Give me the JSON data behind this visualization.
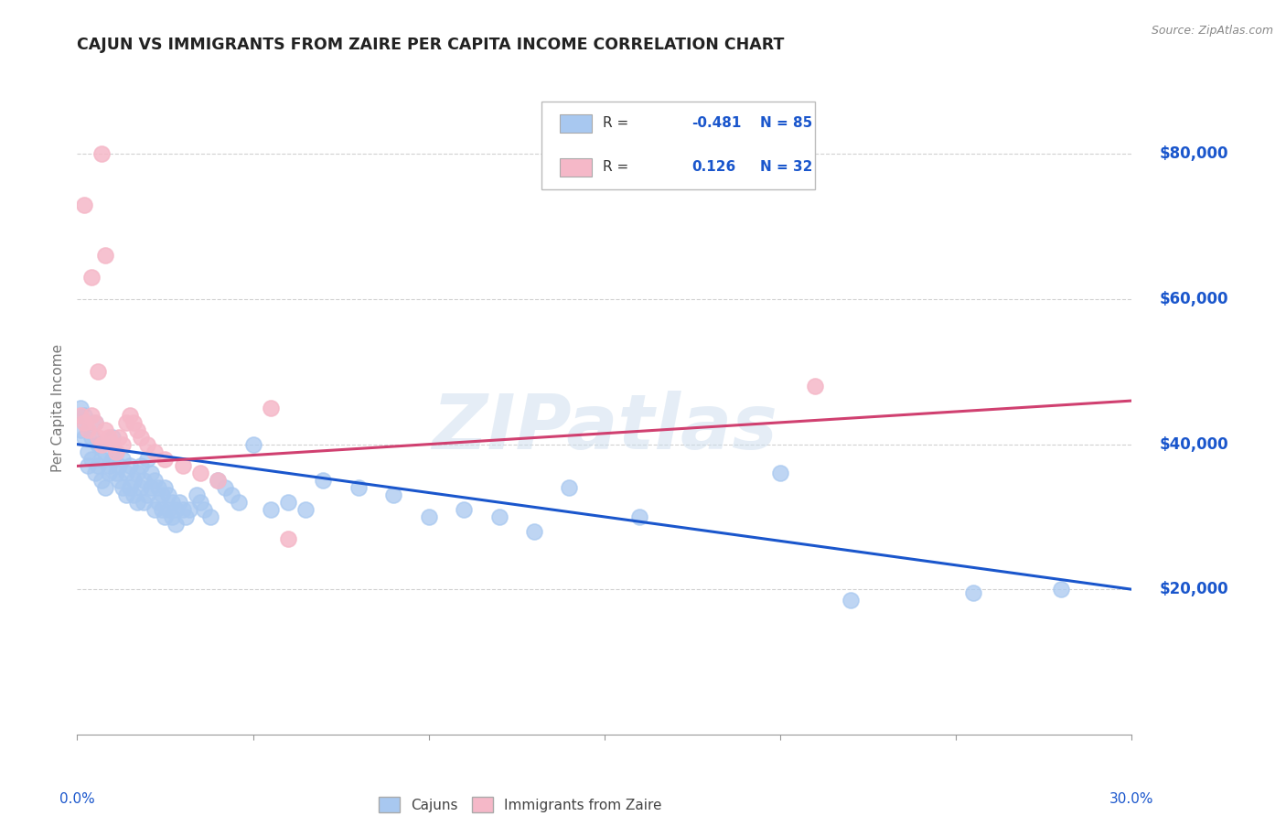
{
  "title": "CAJUN VS IMMIGRANTS FROM ZAIRE PER CAPITA INCOME CORRELATION CHART",
  "source": "Source: ZipAtlas.com",
  "ylabel": "Per Capita Income",
  "watermark": "ZIPatlas",
  "legend_blue_r": "-0.481",
  "legend_blue_n": "85",
  "legend_pink_r": "0.126",
  "legend_pink_n": "32",
  "ytick_values": [
    20000,
    40000,
    60000,
    80000
  ],
  "ylim": [
    0,
    90000
  ],
  "xlim": [
    0.0,
    0.3
  ],
  "blue_color": "#a8c8f0",
  "pink_color": "#f5b8c8",
  "blue_line_color": "#1a56cc",
  "pink_line_color": "#d04070",
  "text_color": "#1a56cc",
  "background_color": "#ffffff",
  "grid_color": "#cccccc",
  "cajun_points": [
    [
      0.001,
      45000
    ],
    [
      0.001,
      42000
    ],
    [
      0.002,
      44000
    ],
    [
      0.002,
      41000
    ],
    [
      0.003,
      39000
    ],
    [
      0.003,
      37000
    ],
    [
      0.004,
      41000
    ],
    [
      0.004,
      38000
    ],
    [
      0.005,
      43000
    ],
    [
      0.005,
      36000
    ],
    [
      0.006,
      40000
    ],
    [
      0.006,
      37000
    ],
    [
      0.007,
      38000
    ],
    [
      0.007,
      35000
    ],
    [
      0.008,
      39000
    ],
    [
      0.008,
      34000
    ],
    [
      0.009,
      37000
    ],
    [
      0.009,
      36000
    ],
    [
      0.01,
      41000
    ],
    [
      0.01,
      38000
    ],
    [
      0.011,
      39000
    ],
    [
      0.011,
      36000
    ],
    [
      0.012,
      37000
    ],
    [
      0.012,
      35000
    ],
    [
      0.013,
      38000
    ],
    [
      0.013,
      34000
    ],
    [
      0.014,
      36000
    ],
    [
      0.014,
      33000
    ],
    [
      0.015,
      37000
    ],
    [
      0.015,
      34000
    ],
    [
      0.016,
      35000
    ],
    [
      0.016,
      33000
    ],
    [
      0.017,
      36000
    ],
    [
      0.017,
      32000
    ],
    [
      0.018,
      37000
    ],
    [
      0.018,
      34000
    ],
    [
      0.019,
      35000
    ],
    [
      0.019,
      32000
    ],
    [
      0.02,
      38000
    ],
    [
      0.02,
      33000
    ],
    [
      0.021,
      36000
    ],
    [
      0.021,
      34000
    ],
    [
      0.022,
      35000
    ],
    [
      0.022,
      31000
    ],
    [
      0.023,
      34000
    ],
    [
      0.023,
      32000
    ],
    [
      0.024,
      33000
    ],
    [
      0.024,
      31000
    ],
    [
      0.025,
      34000
    ],
    [
      0.025,
      30000
    ],
    [
      0.026,
      33000
    ],
    [
      0.026,
      31000
    ],
    [
      0.027,
      32000
    ],
    [
      0.027,
      30000
    ],
    [
      0.028,
      31000
    ],
    [
      0.028,
      29000
    ],
    [
      0.029,
      32000
    ],
    [
      0.03,
      31000
    ],
    [
      0.031,
      30000
    ],
    [
      0.032,
      31000
    ],
    [
      0.034,
      33000
    ],
    [
      0.035,
      32000
    ],
    [
      0.036,
      31000
    ],
    [
      0.038,
      30000
    ],
    [
      0.04,
      35000
    ],
    [
      0.042,
      34000
    ],
    [
      0.044,
      33000
    ],
    [
      0.046,
      32000
    ],
    [
      0.05,
      40000
    ],
    [
      0.055,
      31000
    ],
    [
      0.06,
      32000
    ],
    [
      0.065,
      31000
    ],
    [
      0.07,
      35000
    ],
    [
      0.08,
      34000
    ],
    [
      0.09,
      33000
    ],
    [
      0.1,
      30000
    ],
    [
      0.11,
      31000
    ],
    [
      0.12,
      30000
    ],
    [
      0.13,
      28000
    ],
    [
      0.14,
      34000
    ],
    [
      0.16,
      30000
    ],
    [
      0.2,
      36000
    ],
    [
      0.22,
      18500
    ],
    [
      0.255,
      19500
    ],
    [
      0.28,
      20000
    ]
  ],
  "zaire_points": [
    [
      0.001,
      44000
    ],
    [
      0.002,
      43000
    ],
    [
      0.003,
      42000
    ],
    [
      0.004,
      44000
    ],
    [
      0.005,
      43000
    ],
    [
      0.006,
      41000
    ],
    [
      0.007,
      40000
    ],
    [
      0.008,
      42000
    ],
    [
      0.009,
      41000
    ],
    [
      0.01,
      40000
    ],
    [
      0.011,
      39000
    ],
    [
      0.012,
      41000
    ],
    [
      0.013,
      40000
    ],
    [
      0.014,
      43000
    ],
    [
      0.015,
      44000
    ],
    [
      0.016,
      43000
    ],
    [
      0.017,
      42000
    ],
    [
      0.018,
      41000
    ],
    [
      0.02,
      40000
    ],
    [
      0.022,
      39000
    ],
    [
      0.025,
      38000
    ],
    [
      0.03,
      37000
    ],
    [
      0.035,
      36000
    ],
    [
      0.04,
      35000
    ],
    [
      0.002,
      73000
    ],
    [
      0.004,
      63000
    ],
    [
      0.006,
      50000
    ],
    [
      0.007,
      80000
    ],
    [
      0.008,
      66000
    ],
    [
      0.055,
      45000
    ],
    [
      0.21,
      48000
    ],
    [
      0.06,
      27000
    ]
  ],
  "blue_trend_x": [
    0.0,
    0.3
  ],
  "blue_trend_y": [
    40000,
    20000
  ],
  "pink_trend_x": [
    0.0,
    0.3
  ],
  "pink_trend_y": [
    37000,
    46000
  ]
}
